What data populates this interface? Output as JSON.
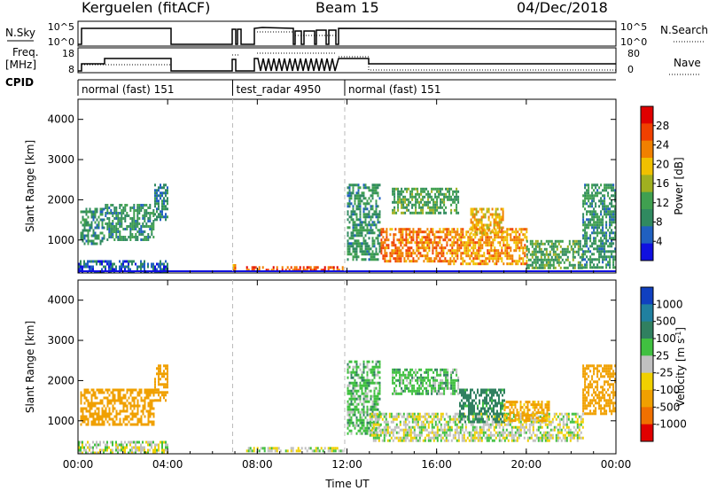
{
  "header": {
    "radar": "Kerguelen (fitACF)",
    "beam": "Beam 15",
    "date": "04/Dec/2018"
  },
  "colors": {
    "line": "#000000",
    "dash": "#bbbbbb",
    "bg": "#ffffff"
  },
  "panels": {
    "nsky": {
      "left_label": "N.Sky",
      "right_label": "N.Search",
      "left_ticks": [
        "10^5",
        "10^0"
      ],
      "right_ticks": [
        "10^5",
        "10^0"
      ]
    },
    "freq": {
      "left_label_1": "Freq.",
      "left_label_2": "[MHz]",
      "right_label": "Nave",
      "left_ticks": [
        "18",
        "8"
      ],
      "right_ticks": [
        "80",
        "0"
      ]
    },
    "cpid": {
      "label": "CPID",
      "segments": [
        {
          "label": "normal (fast) 151",
          "start_h": 0.0,
          "end_h": 6.9
        },
        {
          "label": "test_radar 4950",
          "start_h": 6.9,
          "end_h": 11.9
        },
        {
          "label": "normal (fast) 151",
          "start_h": 11.9,
          "end_h": 24.0
        }
      ]
    }
  },
  "chart_data": [
    {
      "type": "heatmap",
      "name": "power",
      "ylabel": "Slant Range [km]",
      "ylim": [
        180,
        4500
      ],
      "yticks": [
        1000,
        2000,
        3000,
        4000
      ],
      "xlim": [
        0,
        24
      ],
      "xticks": [
        0,
        4,
        8,
        12,
        16,
        20,
        24
      ],
      "xtick_labels": [
        "00:00",
        "04:00",
        "08:00",
        "12:00",
        "16:00",
        "20:00",
        "00:00"
      ],
      "colorbar": {
        "label": "Power [dB]",
        "range": [
          0,
          32
        ],
        "ticks": [
          "4",
          "8",
          "12",
          "16",
          "20",
          "24",
          "28"
        ],
        "colors": [
          "#1010e0",
          "#2060c0",
          "#308a60",
          "#40a050",
          "#a0b020",
          "#f0c000",
          "#f08000",
          "#f04000",
          "#e00000"
        ]
      },
      "regions": [
        {
          "t0": 0.1,
          "t1": 1.2,
          "r0": 900,
          "r1": 1800,
          "level": 10
        },
        {
          "t0": 1.2,
          "t1": 3.4,
          "r0": 1000,
          "r1": 1900,
          "level": 10
        },
        {
          "t0": 3.4,
          "t1": 4.0,
          "r0": 1500,
          "r1": 2400,
          "level": 8
        },
        {
          "t0": 0.0,
          "t1": 4.0,
          "r0": 200,
          "r1": 500,
          "level": 6
        },
        {
          "t0": 6.9,
          "t1": 7.0,
          "r0": 200,
          "r1": 400,
          "level": 24
        },
        {
          "t0": 7.5,
          "t1": 11.8,
          "r0": 220,
          "r1": 350,
          "level": 26
        },
        {
          "t0": 12.0,
          "t1": 13.5,
          "r0": 500,
          "r1": 2400,
          "level": 10
        },
        {
          "t0": 13.5,
          "t1": 16.5,
          "r0": 500,
          "r1": 1300,
          "level": 24
        },
        {
          "t0": 14.0,
          "t1": 17.0,
          "r0": 1700,
          "r1": 2300,
          "level": 12
        },
        {
          "t0": 16.5,
          "t1": 20.0,
          "r0": 400,
          "r1": 1300,
          "level": 22
        },
        {
          "t0": 17.5,
          "t1": 19.0,
          "r0": 1200,
          "r1": 1800,
          "level": 20
        },
        {
          "t0": 20.0,
          "t1": 22.5,
          "r0": 300,
          "r1": 1000,
          "level": 12
        },
        {
          "t0": 22.5,
          "t1": 24.0,
          "r0": 300,
          "r1": 2400,
          "level": 10
        }
      ]
    },
    {
      "type": "heatmap",
      "name": "velocity",
      "ylabel": "Slant Range [km]",
      "ylim": [
        180,
        4500
      ],
      "yticks": [
        1000,
        2000,
        3000,
        4000
      ],
      "xlim": [
        0,
        24
      ],
      "xticks": [
        0,
        4,
        8,
        12,
        16,
        20,
        24
      ],
      "xtick_labels": [
        "00:00",
        "04:00",
        "08:00",
        "12:00",
        "16:00",
        "20:00",
        "00:00"
      ],
      "xlabel": "Time UT",
      "colorbar": {
        "label": "Velocity [m s-1]",
        "range_labels": [
          "1000",
          "500",
          "100",
          "25",
          "-25",
          "-100",
          "-500",
          "-1000"
        ],
        "colors": [
          "#1040c0",
          "#2080a0",
          "#308060",
          "#40c040",
          "#c0c0c0",
          "#f0d000",
          "#f0a000",
          "#f07000",
          "#e00000"
        ]
      },
      "regions": [
        {
          "t0": 0.1,
          "t1": 3.4,
          "r0": 900,
          "r1": 1800,
          "level": -300
        },
        {
          "t0": 3.4,
          "t1": 4.0,
          "r0": 1500,
          "r1": 2400,
          "level": -300
        },
        {
          "t0": 0.0,
          "t1": 4.0,
          "r0": 200,
          "r1": 500,
          "level": 0
        },
        {
          "t0": 7.5,
          "t1": 11.8,
          "r0": 220,
          "r1": 350,
          "level": 0
        },
        {
          "t0": 12.0,
          "t1": 13.5,
          "r0": 700,
          "r1": 2500,
          "level": 60
        },
        {
          "t0": 13.0,
          "t1": 22.5,
          "r0": 500,
          "r1": 1200,
          "level": 0
        },
        {
          "t0": 14.0,
          "t1": 17.0,
          "r0": 1700,
          "r1": 2300,
          "level": 60
        },
        {
          "t0": 17.0,
          "t1": 19.0,
          "r0": 1000,
          "r1": 1800,
          "level": 150
        },
        {
          "t0": 19.0,
          "t1": 21.0,
          "r0": 1000,
          "r1": 1500,
          "level": -150
        },
        {
          "t0": 22.5,
          "t1": 24.0,
          "r0": 1200,
          "r1": 2400,
          "level": -300
        }
      ]
    }
  ]
}
